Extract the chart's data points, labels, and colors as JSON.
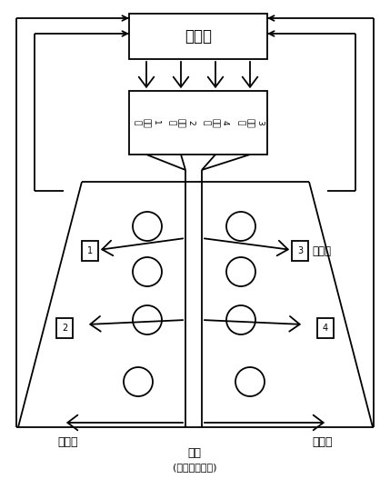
{
  "bg_color": "#ffffff",
  "line_color": "#000000",
  "controller_text": "控制器",
  "regulator_labels": [
    "1\n整流\n器",
    "2\n整流\n器",
    "4\n整流\n器",
    "3\n整流\n器"
  ],
  "sensor_label": "传感器",
  "sample_rack_left": "样品架",
  "sample_rack_right": "样品架",
  "lamp_label": "灯管",
  "lamp_sublabel": "(相同使用时间)"
}
